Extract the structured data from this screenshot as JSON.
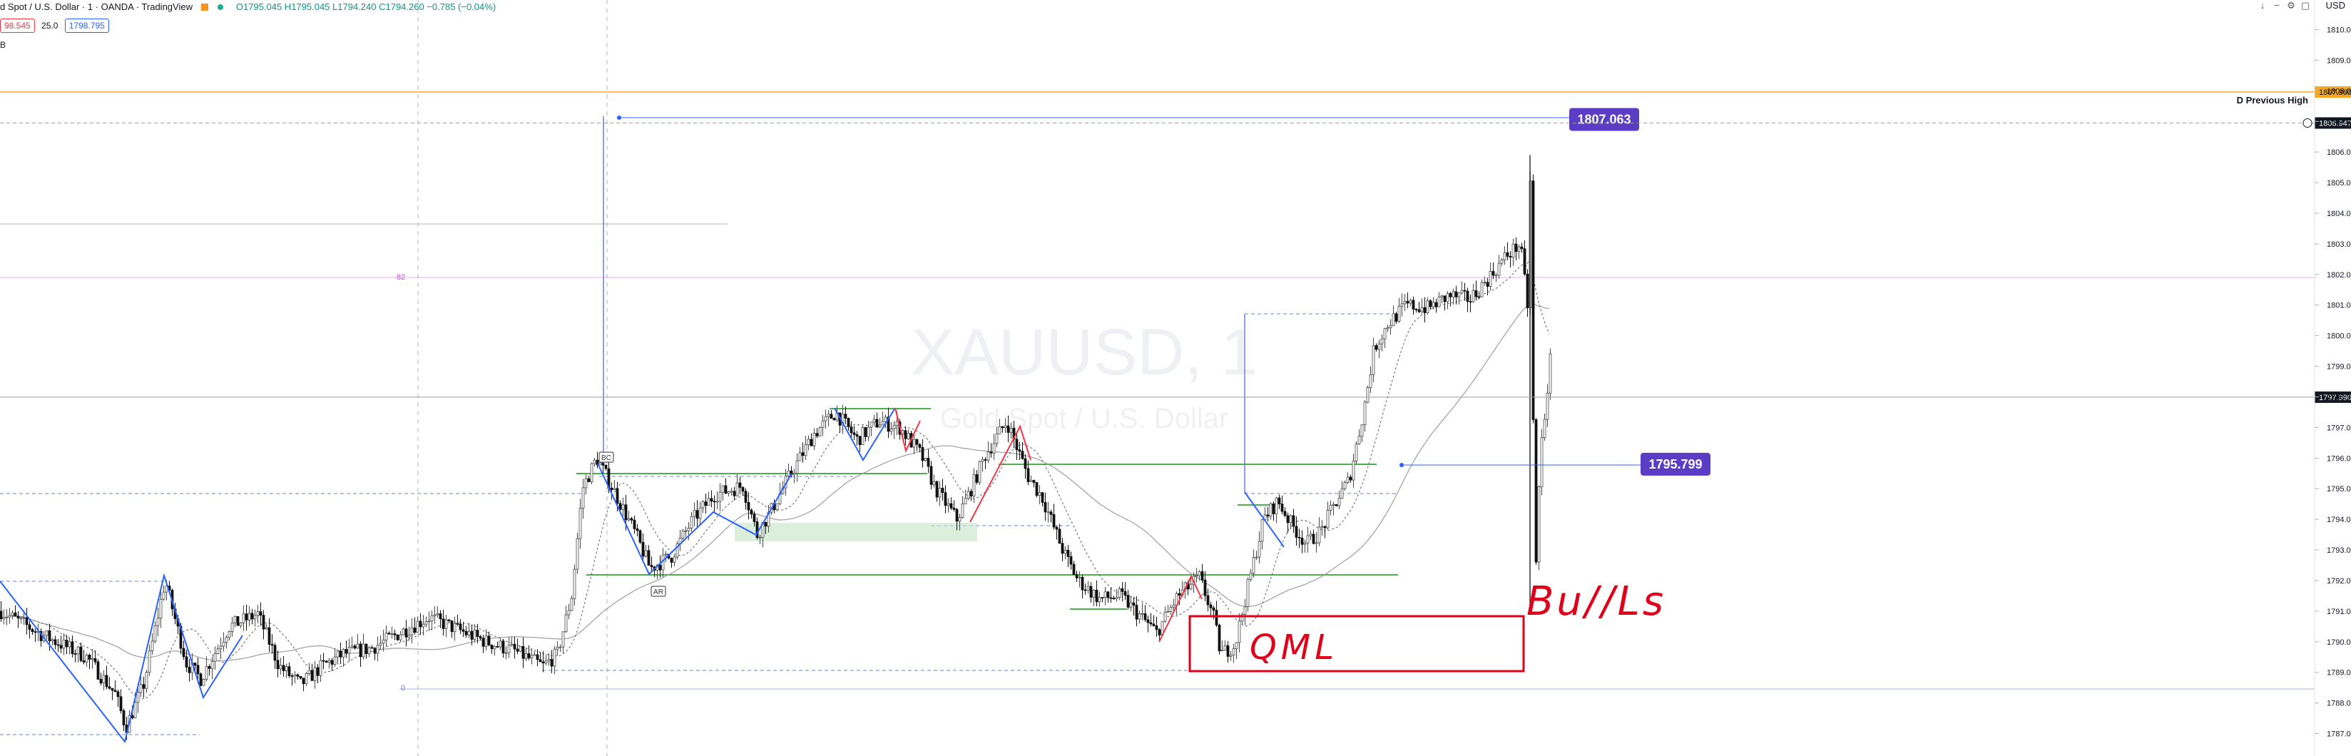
{
  "header": {
    "title": "d Spot / U.S. Dollar · 1 · OANDA · TradingView",
    "ohlc": "O1795.045  H1795.045  L1794.240  C1794.260  −0.785 (−0.04%)"
  },
  "trade_badges": {
    "sell": "98.545",
    "spread": "25.0",
    "buy": "1798.795"
  },
  "sub_label": "B",
  "currency": "USD",
  "watermark": {
    "symbol": "XAUUSD, 1",
    "description": "Gold Spot / U.S. Dollar"
  },
  "colors": {
    "up": "#089981",
    "down": "#f23645",
    "accent": "#6b3fc4",
    "support": "#4caf50",
    "annotation": "#e0001a"
  },
  "chart_data": {
    "type": "candlestick",
    "ylim": [
      1786.5,
      1810.5
    ],
    "y_ticks": [
      "1787.000",
      "1788.000",
      "1789.000",
      "1790.000",
      "1791.000",
      "1792.000",
      "1793.000",
      "1794.000",
      "1795.000",
      "1796.000",
      "1797.000",
      "1798.000",
      "1799.000",
      "1800.000",
      "1801.000",
      "1802.000",
      "1803.000",
      "1804.000",
      "1805.000",
      "1806.000",
      "1807.000",
      "1808.000",
      "1809.000",
      "1810.000"
    ],
    "price_path": [
      [
        0,
        1791.0
      ],
      [
        60,
        1790.2
      ],
      [
        120,
        1789.5
      ],
      [
        160,
        1788.3
      ],
      [
        175,
        1787.2
      ],
      [
        200,
        1788.6
      ],
      [
        230,
        1792.0
      ],
      [
        260,
        1789.3
      ],
      [
        280,
        1788.8
      ],
      [
        320,
        1790.5
      ],
      [
        360,
        1790.9
      ],
      [
        390,
        1789.2
      ],
      [
        420,
        1788.6
      ],
      [
        450,
        1789.2
      ],
      [
        480,
        1789.6
      ],
      [
        520,
        1789.8
      ],
      [
        560,
        1790.3
      ],
      [
        600,
        1790.8
      ],
      [
        640,
        1790.4
      ],
      [
        680,
        1790.0
      ],
      [
        720,
        1789.7
      ],
      [
        760,
        1789.2
      ],
      [
        780,
        1789.6
      ],
      [
        800,
        1791.5
      ],
      [
        815,
        1795.0
      ],
      [
        835,
        1796.0
      ],
      [
        860,
        1794.9
      ],
      [
        890,
        1793.5
      ],
      [
        910,
        1792.4
      ],
      [
        940,
        1792.8
      ],
      [
        970,
        1794.0
      ],
      [
        1000,
        1794.8
      ],
      [
        1040,
        1795.1
      ],
      [
        1060,
        1793.5
      ],
      [
        1080,
        1794.3
      ],
      [
        1100,
        1795.2
      ],
      [
        1140,
        1796.8
      ],
      [
        1170,
        1797.5
      ],
      [
        1200,
        1796.6
      ],
      [
        1230,
        1797.2
      ],
      [
        1260,
        1797.0
      ],
      [
        1290,
        1796.1
      ],
      [
        1310,
        1795.0
      ],
      [
        1340,
        1794.0
      ],
      [
        1360,
        1795.0
      ],
      [
        1380,
        1796.1
      ],
      [
        1410,
        1797.2
      ],
      [
        1440,
        1795.4
      ],
      [
        1460,
        1794.7
      ],
      [
        1490,
        1792.9
      ],
      [
        1510,
        1792.0
      ],
      [
        1540,
        1791.4
      ],
      [
        1570,
        1791.5
      ],
      [
        1590,
        1791.0
      ],
      [
        1620,
        1790.3
      ],
      [
        1650,
        1791.5
      ],
      [
        1680,
        1792.1
      ],
      [
        1700,
        1790.8
      ],
      [
        1710,
        1789.6
      ],
      [
        1730,
        1789.9
      ],
      [
        1750,
        1792.0
      ],
      [
        1770,
        1794.0
      ],
      [
        1790,
        1794.6
      ],
      [
        1810,
        1793.8
      ],
      [
        1830,
        1793.2
      ],
      [
        1850,
        1793.6
      ],
      [
        1870,
        1794.5
      ],
      [
        1890,
        1795.3
      ],
      [
        1910,
        1797.5
      ],
      [
        1925,
        1799.6
      ],
      [
        1945,
        1800.4
      ],
      [
        1970,
        1801.0
      ],
      [
        2000,
        1800.9
      ],
      [
        2030,
        1801.3
      ],
      [
        2060,
        1801.2
      ],
      [
        2090,
        1802.0
      ],
      [
        2110,
        1802.6
      ],
      [
        2130,
        1803.0
      ],
      [
        2140,
        1801.0
      ],
      [
        2145,
        1806.0
      ],
      [
        2150,
        1791.3
      ],
      [
        2158,
        1796.2
      ],
      [
        2165,
        1797.6
      ],
      [
        2172,
        1799.2
      ]
    ],
    "levels": [
      {
        "name": "D Previous High",
        "price": 1807.96,
        "label": "D Previous High",
        "tag": "1807.960",
        "color": "#f5a623"
      },
      {
        "name": "callout-high",
        "price": 1807.063,
        "callout": "1807.063"
      },
      {
        "name": "callout-mid",
        "price": 1795.799,
        "callout": "1795.799"
      },
      {
        "name": "current-price",
        "price": 1797.99,
        "tag": "1797.990"
      },
      {
        "name": "mark-price",
        "price": 1806.947,
        "tag": "1806.947"
      }
    ],
    "annotations": {
      "bulls": "Bu//Ls",
      "qml": "QML",
      "bc": "BC",
      "ar": "AR",
      "pink": "82",
      "zero": "0"
    }
  }
}
